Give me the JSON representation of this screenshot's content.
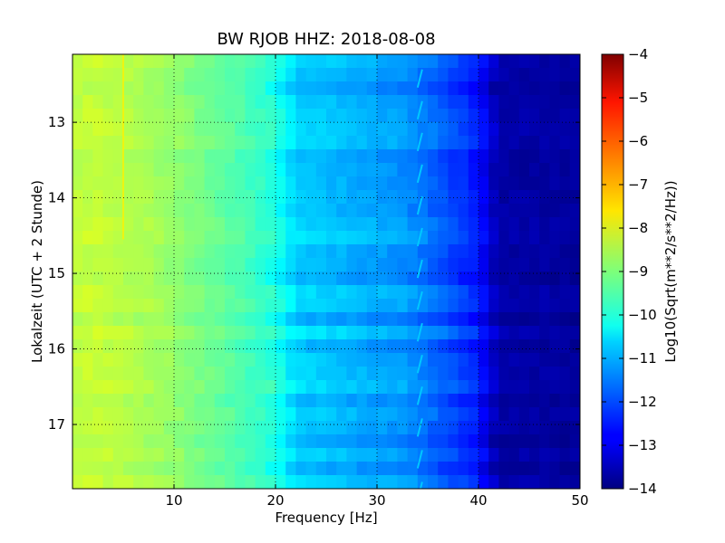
{
  "chart_data": {
    "type": "heatmap",
    "title": "BW RJOB HHZ: 2018-08-08",
    "xlabel": "Frequency [Hz]",
    "ylabel": "Lokalzeit (UTC + 2 Stunde)",
    "xlim": [
      0,
      50
    ],
    "ylim": [
      12.1,
      17.85
    ],
    "y_inverted": true,
    "x_ticks": [
      10,
      20,
      30,
      40,
      50
    ],
    "y_ticks": [
      13,
      14,
      15,
      16,
      17
    ],
    "grid": true,
    "colormap": "jet",
    "colorbar": {
      "label": "Log10(Sqrt(m**2/s**2/Hz))",
      "range": [
        -14,
        -4
      ],
      "ticks": [
        -4,
        -5,
        -6,
        -7,
        -8,
        -9,
        -10,
        -11,
        -12,
        -13,
        -14
      ]
    },
    "spectrum_profile": [
      {
        "freq": 0,
        "value": -8.4
      },
      {
        "freq": 2,
        "value": -8.3
      },
      {
        "freq": 8,
        "value": -8.6
      },
      {
        "freq": 12,
        "value": -9.0
      },
      {
        "freq": 16,
        "value": -9.4
      },
      {
        "freq": 20,
        "value": -9.9
      },
      {
        "freq": 22,
        "value": -10.7
      },
      {
        "freq": 28,
        "value": -11.0
      },
      {
        "freq": 33,
        "value": -11.3
      },
      {
        "freq": 36,
        "value": -11.8
      },
      {
        "freq": 40,
        "value": -12.5
      },
      {
        "freq": 42,
        "value": -13.6
      },
      {
        "freq": 50,
        "value": -13.7
      }
    ],
    "features": {
      "narrow_line_hz": 5,
      "narrow_line_value": -7.6,
      "drifting_line_hz": 34.3,
      "drifting_line_value": -10.8
    }
  }
}
